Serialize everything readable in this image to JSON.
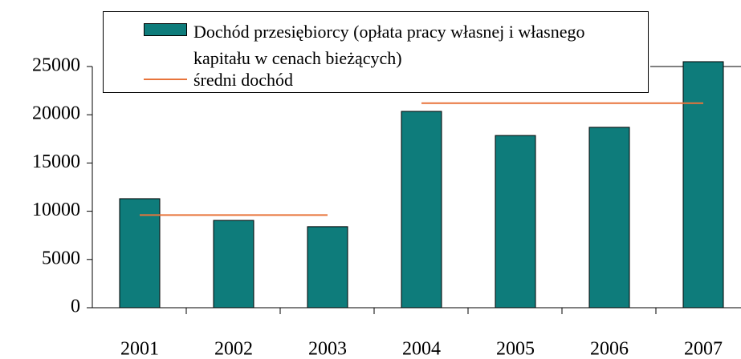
{
  "chart_data": {
    "type": "bar",
    "categories": [
      "2001",
      "2002",
      "2003",
      "2004",
      "2005",
      "2006",
      "2007"
    ],
    "series": [
      {
        "name": "Dochód przesiębiorcy (opłata pracy własnej i własnego kapitału w cenach bieżących)",
        "type": "bar",
        "color": "#0e7c7b",
        "values": [
          11300,
          9050,
          8400,
          20350,
          17850,
          18700,
          25500
        ]
      },
      {
        "name": "średni dochód",
        "type": "line",
        "color": "#e8743b",
        "values": [
          9600,
          9600,
          9600,
          21200,
          21200,
          21200,
          21200
        ]
      }
    ],
    "ylim": [
      0,
      25000
    ],
    "yticks": [
      0,
      5000,
      10000,
      15000,
      20000,
      25000
    ]
  }
}
